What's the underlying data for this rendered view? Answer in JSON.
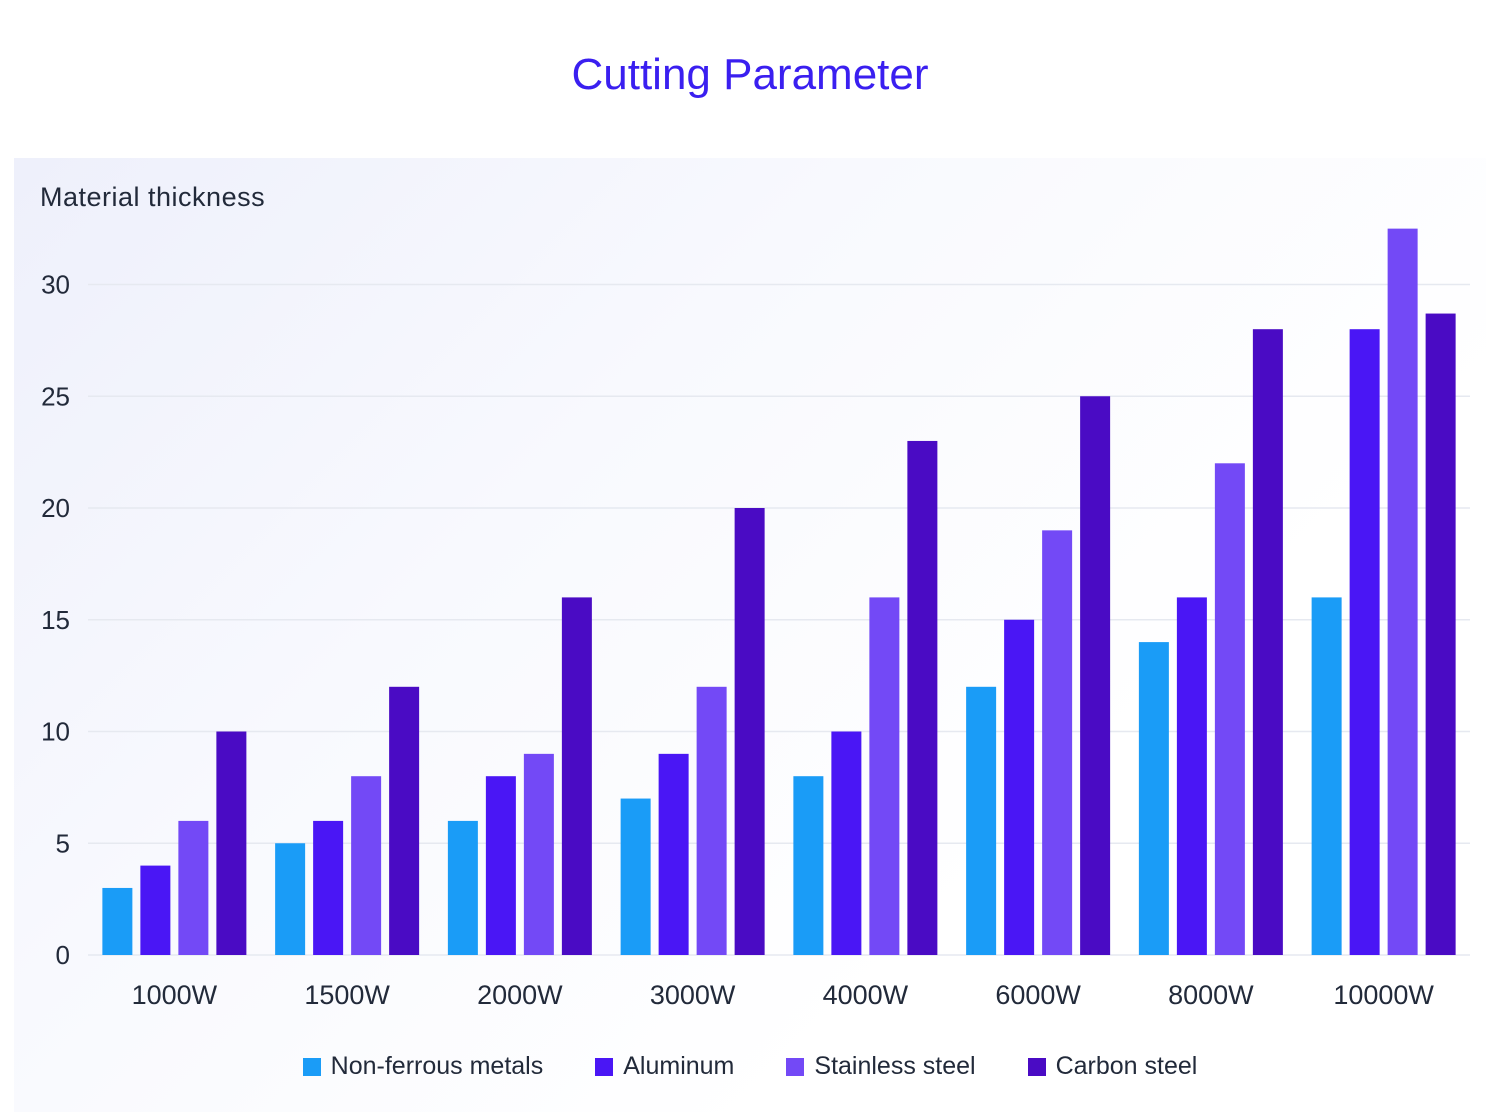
{
  "chart_data": {
    "type": "bar",
    "title": "Cutting Parameter",
    "ylabel": "Material thickness",
    "xlabel": "",
    "ylim": [
      0,
      33
    ],
    "yticks": [
      0,
      5,
      10,
      15,
      20,
      25,
      30
    ],
    "grid": true,
    "legend_position": "bottom",
    "categories": [
      "1000W",
      "1500W",
      "2000W",
      "3000W",
      "4000W",
      "6000W",
      "8000W",
      "10000W"
    ],
    "series": [
      {
        "name": "Non-ferrous metals",
        "color": "#1a9cf7",
        "values": [
          3,
          5,
          6,
          7,
          8,
          12,
          14,
          16
        ]
      },
      {
        "name": "Aluminum",
        "color": "#4a16f5",
        "values": [
          4,
          6,
          8,
          9,
          10,
          15,
          16,
          28
        ]
      },
      {
        "name": "Stainless steel",
        "color": "#7349f6",
        "values": [
          6,
          8,
          9,
          12,
          16,
          19,
          22,
          32.5
        ]
      },
      {
        "name": "Carbon steel",
        "color": "#4a0bc4",
        "values": [
          10,
          12,
          16,
          20,
          23,
          25,
          28,
          28.7
        ]
      }
    ]
  }
}
